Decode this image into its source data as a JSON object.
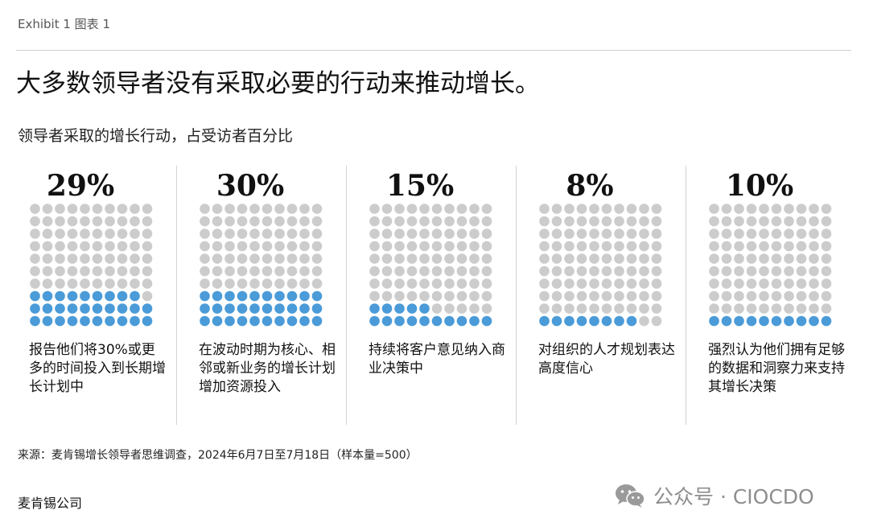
{
  "header": {
    "exhibit_label": "Exhibit 1 图表 1",
    "title": "大多数领导者没有采取必要的行动来推动增长。",
    "subtitle": "领导者采取的增长行动，占受访者百分比"
  },
  "colors": {
    "filled": "#4a9bd8",
    "empty": "#cccccc"
  },
  "chart_data": {
    "type": "waffle",
    "title": "大多数领导者没有采取必要的行动来推动增长。",
    "subtitle": "领导者采取的增长行动，占受访者百分比",
    "unit": "%",
    "grid": {
      "rows": 10,
      "cols": 10
    },
    "items": [
      {
        "value": 29,
        "label": "29%",
        "description": "报告他们将30%或更多的时间投入到长期增长计划中"
      },
      {
        "value": 30,
        "label": "30%",
        "description": "在波动时期为核心、相邻或新业务的增长计划增加资源投入"
      },
      {
        "value": 15,
        "label": "15%",
        "description": "持续将客户意见纳入商业决策中"
      },
      {
        "value": 8,
        "label": "8%",
        "description": "对组织的人才规划表达高度信心"
      },
      {
        "value": 10,
        "label": "10%",
        "description": "强烈认为他们拥有足够的数据和洞察力来支持其增长决策"
      }
    ]
  },
  "footer": {
    "source": "来源：麦肯锡增长领导者思维调查，2024年6月7日至7月18日（样本量=500）",
    "organization": "麦肯锡公司"
  },
  "watermark": {
    "text": "公众号 · CIOCDO",
    "icon": "wechat-icon"
  }
}
